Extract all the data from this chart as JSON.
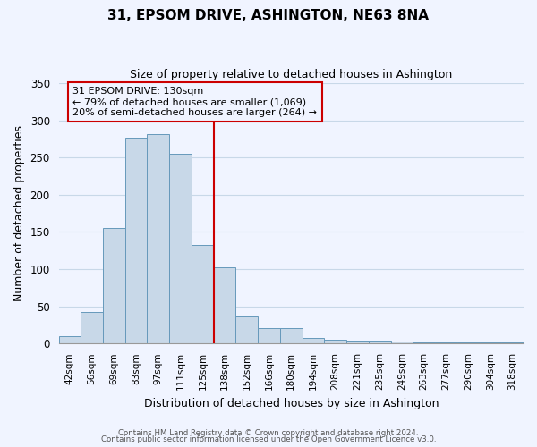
{
  "title": "31, EPSOM DRIVE, ASHINGTON, NE63 8NA",
  "subtitle": "Size of property relative to detached houses in Ashington",
  "xlabel": "Distribution of detached houses by size in Ashington",
  "ylabel": "Number of detached properties",
  "bar_labels": [
    "42sqm",
    "56sqm",
    "69sqm",
    "83sqm",
    "97sqm",
    "111sqm",
    "125sqm",
    "138sqm",
    "152sqm",
    "166sqm",
    "180sqm",
    "194sqm",
    "208sqm",
    "221sqm",
    "235sqm",
    "249sqm",
    "263sqm",
    "277sqm",
    "290sqm",
    "304sqm",
    "318sqm"
  ],
  "bar_heights": [
    10,
    42,
    155,
    277,
    281,
    255,
    133,
    103,
    36,
    21,
    21,
    7,
    5,
    4,
    4,
    3,
    2,
    1,
    1,
    1,
    1
  ],
  "bar_color": "#c8d8e8",
  "bar_edge_color": "#6699bb",
  "vline_x": 6.5,
  "vline_color": "#cc0000",
  "annotation_title": "31 EPSOM DRIVE: 130sqm",
  "annotation_line1": "← 79% of detached houses are smaller (1,069)",
  "annotation_line2": "20% of semi-detached houses are larger (264) →",
  "annotation_box_edge": "#cc0000",
  "ylim": [
    0,
    350
  ],
  "yticks": [
    0,
    50,
    100,
    150,
    200,
    250,
    300,
    350
  ],
  "footer1": "Contains HM Land Registry data © Crown copyright and database right 2024.",
  "footer2": "Contains public sector information licensed under the Open Government Licence v3.0.",
  "bg_color": "#f0f4ff",
  "grid_color": "#c8d8e8"
}
